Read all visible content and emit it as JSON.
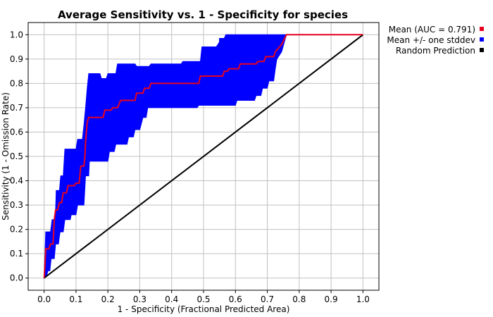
{
  "chart_data": {
    "type": "line",
    "title": "Average Sensitivity vs. 1 - Specificity for species",
    "xlabel": "1 - Specificity (Fractional Predicted Area)",
    "ylabel": "Sensitivity (1 - Omission Rate)",
    "xlim": [
      -0.05,
      1.05
    ],
    "ylim": [
      -0.05,
      1.05
    ],
    "x_ticks": [
      "0.0",
      "0.1",
      "0.2",
      "0.3",
      "0.4",
      "0.5",
      "0.6",
      "0.7",
      "0.8",
      "0.9",
      "1.0"
    ],
    "y_ticks": [
      "0.0",
      "0.1",
      "0.2",
      "0.3",
      "0.4",
      "0.5",
      "0.6",
      "0.7",
      "0.8",
      "0.9",
      "1.0"
    ],
    "grid": true,
    "legend_position": "top-right",
    "colors": {
      "mean": "#e6001e",
      "band": "#0000ff",
      "random": "#000000",
      "grid": "#c0c0c0"
    },
    "series": [
      {
        "name": "Mean (AUC = 0.791)",
        "type": "line",
        "color": "#e6001e",
        "points": [
          [
            0.0,
            0.0
          ],
          [
            0.003,
            0.06
          ],
          [
            0.005,
            0.12
          ],
          [
            0.015,
            0.12
          ],
          [
            0.02,
            0.14
          ],
          [
            0.028,
            0.14
          ],
          [
            0.032,
            0.24
          ],
          [
            0.036,
            0.28
          ],
          [
            0.042,
            0.28
          ],
          [
            0.048,
            0.31
          ],
          [
            0.055,
            0.31
          ],
          [
            0.06,
            0.35
          ],
          [
            0.07,
            0.35
          ],
          [
            0.075,
            0.38
          ],
          [
            0.095,
            0.38
          ],
          [
            0.1,
            0.39
          ],
          [
            0.11,
            0.39
          ],
          [
            0.115,
            0.46
          ],
          [
            0.125,
            0.46
          ],
          [
            0.128,
            0.5
          ],
          [
            0.13,
            0.56
          ],
          [
            0.135,
            0.64
          ],
          [
            0.14,
            0.66
          ],
          [
            0.185,
            0.66
          ],
          [
            0.19,
            0.69
          ],
          [
            0.21,
            0.69
          ],
          [
            0.215,
            0.7
          ],
          [
            0.23,
            0.7
          ],
          [
            0.24,
            0.73
          ],
          [
            0.285,
            0.73
          ],
          [
            0.29,
            0.76
          ],
          [
            0.31,
            0.76
          ],
          [
            0.315,
            0.78
          ],
          [
            0.33,
            0.78
          ],
          [
            0.335,
            0.8
          ],
          [
            0.485,
            0.8
          ],
          [
            0.49,
            0.83
          ],
          [
            0.56,
            0.83
          ],
          [
            0.565,
            0.85
          ],
          [
            0.575,
            0.85
          ],
          [
            0.58,
            0.86
          ],
          [
            0.61,
            0.86
          ],
          [
            0.615,
            0.88
          ],
          [
            0.665,
            0.88
          ],
          [
            0.67,
            0.89
          ],
          [
            0.69,
            0.89
          ],
          [
            0.695,
            0.91
          ],
          [
            0.72,
            0.91
          ],
          [
            0.725,
            0.93
          ],
          [
            0.745,
            0.96
          ],
          [
            0.76,
            1.0
          ],
          [
            1.0,
            1.0
          ]
        ]
      },
      {
        "name": "Mean +/- one stddev",
        "type": "band",
        "color": "#0000ff",
        "upper": [
          [
            0.0,
            0.0
          ],
          [
            0.005,
            0.19
          ],
          [
            0.02,
            0.19
          ],
          [
            0.025,
            0.24
          ],
          [
            0.035,
            0.24
          ],
          [
            0.038,
            0.36
          ],
          [
            0.048,
            0.36
          ],
          [
            0.052,
            0.42
          ],
          [
            0.06,
            0.42
          ],
          [
            0.065,
            0.53
          ],
          [
            0.1,
            0.53
          ],
          [
            0.105,
            0.57
          ],
          [
            0.12,
            0.57
          ],
          [
            0.125,
            0.63
          ],
          [
            0.13,
            0.7
          ],
          [
            0.135,
            0.78
          ],
          [
            0.14,
            0.84
          ],
          [
            0.175,
            0.84
          ],
          [
            0.18,
            0.82
          ],
          [
            0.195,
            0.82
          ],
          [
            0.2,
            0.84
          ],
          [
            0.225,
            0.84
          ],
          [
            0.23,
            0.88
          ],
          [
            0.285,
            0.88
          ],
          [
            0.29,
            0.87
          ],
          [
            0.33,
            0.87
          ],
          [
            0.335,
            0.88
          ],
          [
            0.43,
            0.88
          ],
          [
            0.435,
            0.89
          ],
          [
            0.49,
            0.89
          ],
          [
            0.495,
            0.95
          ],
          [
            0.54,
            0.95
          ],
          [
            0.545,
            0.96
          ],
          [
            0.55,
            0.97
          ],
          [
            0.55,
            0.985
          ],
          [
            0.565,
            0.985
          ],
          [
            0.57,
            1.0
          ],
          [
            1.0,
            1.0
          ]
        ],
        "lower": [
          [
            0.0,
            0.0
          ],
          [
            0.008,
            0.01
          ],
          [
            0.012,
            0.03
          ],
          [
            0.018,
            0.03
          ],
          [
            0.022,
            0.08
          ],
          [
            0.032,
            0.08
          ],
          [
            0.036,
            0.14
          ],
          [
            0.045,
            0.14
          ],
          [
            0.05,
            0.19
          ],
          [
            0.06,
            0.19
          ],
          [
            0.065,
            0.24
          ],
          [
            0.082,
            0.24
          ],
          [
            0.085,
            0.26
          ],
          [
            0.1,
            0.26
          ],
          [
            0.105,
            0.3
          ],
          [
            0.125,
            0.3
          ],
          [
            0.13,
            0.42
          ],
          [
            0.14,
            0.42
          ],
          [
            0.142,
            0.48
          ],
          [
            0.2,
            0.48
          ],
          [
            0.205,
            0.52
          ],
          [
            0.22,
            0.52
          ],
          [
            0.225,
            0.55
          ],
          [
            0.26,
            0.55
          ],
          [
            0.265,
            0.58
          ],
          [
            0.28,
            0.58
          ],
          [
            0.285,
            0.61
          ],
          [
            0.3,
            0.61
          ],
          [
            0.31,
            0.66
          ],
          [
            0.32,
            0.66
          ],
          [
            0.325,
            0.7
          ],
          [
            0.48,
            0.7
          ],
          [
            0.485,
            0.71
          ],
          [
            0.6,
            0.71
          ],
          [
            0.605,
            0.73
          ],
          [
            0.66,
            0.73
          ],
          [
            0.665,
            0.75
          ],
          [
            0.68,
            0.75
          ],
          [
            0.685,
            0.78
          ],
          [
            0.7,
            0.78
          ],
          [
            0.705,
            0.81
          ],
          [
            0.72,
            0.81
          ],
          [
            0.725,
            0.86
          ],
          [
            0.73,
            0.9
          ],
          [
            0.745,
            0.93
          ],
          [
            0.76,
            1.0
          ],
          [
            1.0,
            1.0
          ]
        ]
      },
      {
        "name": "Random Prediction",
        "type": "line",
        "color": "#000000",
        "points": [
          [
            0.0,
            0.0
          ],
          [
            1.0,
            1.0
          ]
        ]
      }
    ],
    "legend": [
      {
        "label": "Mean (AUC = 0.791)",
        "color": "#e6001e"
      },
      {
        "label": "Mean +/- one stddev",
        "color": "#0000ff"
      },
      {
        "label": "Random Prediction",
        "color": "#000000"
      }
    ]
  }
}
